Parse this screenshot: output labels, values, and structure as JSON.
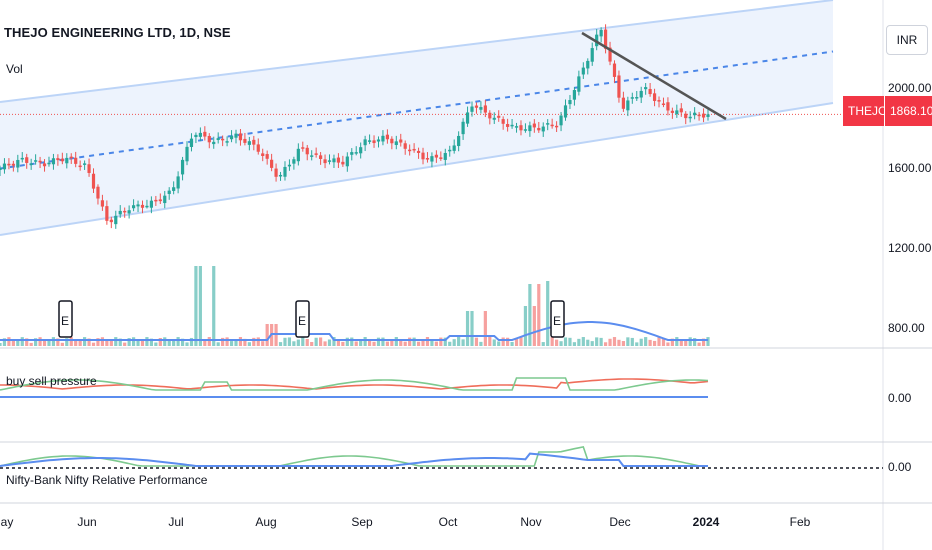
{
  "header": {
    "title": "THEJO ENGINEERING LTD, 1D, NSE",
    "volume_label": "Vol"
  },
  "currency": "INR",
  "last_price": {
    "symbol": "THEJO",
    "price": "1868.10",
    "color": "#f23645"
  },
  "indicators": {
    "buy_sell_label": "buy sell pressure",
    "relative_label": "Nifty-Bank Nifty Relative Performance"
  },
  "colors": {
    "up": "#26a69a",
    "down": "#ef5350",
    "channel": "#bcd4f7",
    "channel_fill": "#eaf1fd",
    "midline": "#4a86e8",
    "trendline": "#555555",
    "volume_ma": "#5b8def",
    "osc_green": "#7dc98f",
    "osc_red": "#ef6d5a",
    "osc_blue": "#5b8def"
  },
  "chart_data": {
    "type": "candlestick",
    "title": "THEJO ENGINEERING LTD, 1D, NSE",
    "x_ticks": [
      "May",
      "Jun",
      "Jul",
      "Aug",
      "Sep",
      "Oct",
      "Nov",
      "Dec",
      "2024",
      "Feb"
    ],
    "y_ticks": [
      "2000.00",
      "1600.00",
      "1200.00",
      "800.00"
    ],
    "ylim": [
      700,
      2400
    ],
    "last_close": 1868.1,
    "price_path": [
      [
        "May",
        1600
      ],
      [
        "May",
        1640
      ],
      [
        "May",
        1620
      ],
      [
        "May",
        1650
      ],
      [
        "May",
        1610
      ],
      [
        "Jun",
        1330
      ],
      [
        "Jun",
        1400
      ],
      [
        "Jun",
        1420
      ],
      [
        "Jun",
        1480
      ],
      [
        "Jun",
        1780
      ],
      [
        "Jul",
        1730
      ],
      [
        "Jul",
        1760
      ],
      [
        "Jul",
        1700
      ],
      [
        "Aug",
        1550
      ],
      [
        "Aug",
        1700
      ],
      [
        "Aug",
        1640
      ],
      [
        "Aug",
        1630
      ],
      [
        "Sep",
        1730
      ],
      [
        "Sep",
        1750
      ],
      [
        "Sep",
        1700
      ],
      [
        "Sep",
        1640
      ],
      [
        "Oct",
        1680
      ],
      [
        "Oct",
        1920
      ],
      [
        "Oct",
        1850
      ],
      [
        "Oct",
        1800
      ],
      [
        "Nov",
        1800
      ],
      [
        "Nov",
        1820
      ],
      [
        "Nov",
        2050
      ],
      [
        "Nov",
        2300
      ],
      [
        "Dec",
        1900
      ],
      [
        "Dec",
        2000
      ],
      [
        "Dec",
        1900
      ],
      [
        "Dec",
        1860
      ],
      [
        "2024",
        1868
      ]
    ],
    "earnings_markers": [
      "Jun",
      "Aug",
      "Nov"
    ],
    "earnings_label": "E",
    "buy_sell_pressure": {
      "level_label": "0.00"
    },
    "relative_performance": {
      "level_label": "0.00"
    }
  }
}
